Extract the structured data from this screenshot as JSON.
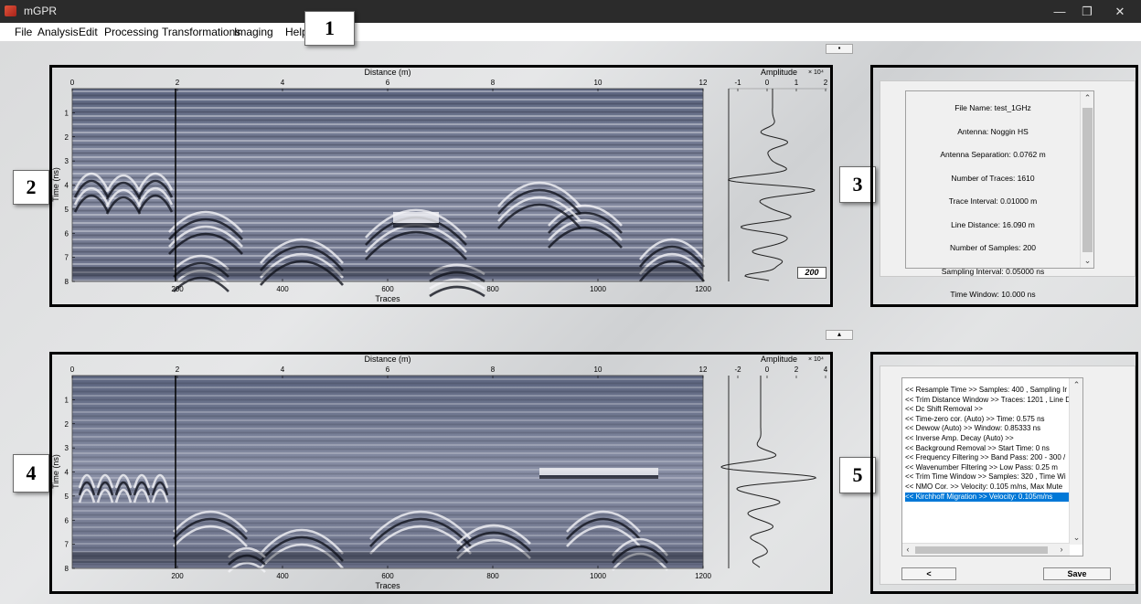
{
  "window": {
    "title": "mGPR",
    "controls": {
      "minimize": "—",
      "maximize": "❐",
      "close": "✕"
    }
  },
  "menu": [
    "File",
    "Analysis",
    "Edit",
    "Processing",
    "Transformations",
    "Imaging",
    "Help"
  ],
  "badges": [
    "1",
    "2",
    "3",
    "4",
    "5"
  ],
  "toggle_top": "▪",
  "toggle_mid": "▴",
  "radargram_top": {
    "x_top_label": "Distance (m)",
    "x_top_ticks": [
      "0",
      "2",
      "4",
      "6",
      "8",
      "10",
      "12"
    ],
    "x_bottom_label": "Traces",
    "x_bottom_ticks": [
      "200",
      "400",
      "600",
      "800",
      "1000",
      "1200"
    ],
    "y_label": "Time (ns)",
    "y_ticks": [
      "1",
      "2",
      "3",
      "4",
      "5",
      "6",
      "7",
      "8"
    ]
  },
  "trace_top": {
    "title": "Amplitude",
    "exponent": "× 10⁴",
    "ticks": [
      "-1",
      "0",
      "1",
      "2"
    ],
    "trace_number": "200"
  },
  "radargram_bottom": {
    "x_top_label": "Distance (m)",
    "x_top_ticks": [
      "0",
      "2",
      "4",
      "6",
      "8",
      "10",
      "12"
    ],
    "x_bottom_label": "Traces",
    "x_bottom_ticks": [
      "200",
      "400",
      "600",
      "800",
      "1000",
      "1200"
    ],
    "y_label": "Time (ns)",
    "y_ticks": [
      "1",
      "2",
      "3",
      "4",
      "5",
      "6",
      "7",
      "8"
    ]
  },
  "trace_bottom": {
    "title": "Amplitude",
    "exponent": "× 10⁴",
    "ticks": [
      "-2",
      "0",
      "2",
      "4"
    ]
  },
  "info": [
    "File Name: test_1GHz",
    "Antenna: Noggin HS",
    "Antenna Separation: 0.0762 m",
    "Number of Traces: 1610",
    "Trace Interval: 0.01000 m",
    "Line Distance:  16.090 m",
    "Number of Samples: 200",
    "Sampling Interval: 0.05000 ns",
    "Time Window: 10.000 ns"
  ],
  "log": [
    "<< Resample Time >> Samples:  400 , Sampling Ir",
    "<< Trim Distance Window >> Traces:  1201 , Line D",
    "<< Dc Shift Removal >>",
    "<< Time-zero cor. (Auto) >> Time:  0.575 ns",
    "<< Dewow (Auto) >> Window:  0.85333 ns",
    "<< Inverse Amp. Decay (Auto) >>",
    "<< Background Removal >> Start Time:  0 ns",
    "<< Frequency Filtering >> Band Pass:  200 - 300 /",
    "<< Wavenumber Filtering  >> Low Pass:  0.25 m",
    "<< Trim Time Window >> Samples:  320 , Time Wi",
    "<< NMO Cor.  >> Velocity:  0.105 m/ns,  Max Mute",
    "<< Kirchhoff Migration >> Velocity: 0.105m/ns"
  ],
  "log_selected_index": 11,
  "buttons": {
    "back": "<",
    "save": "Save"
  }
}
